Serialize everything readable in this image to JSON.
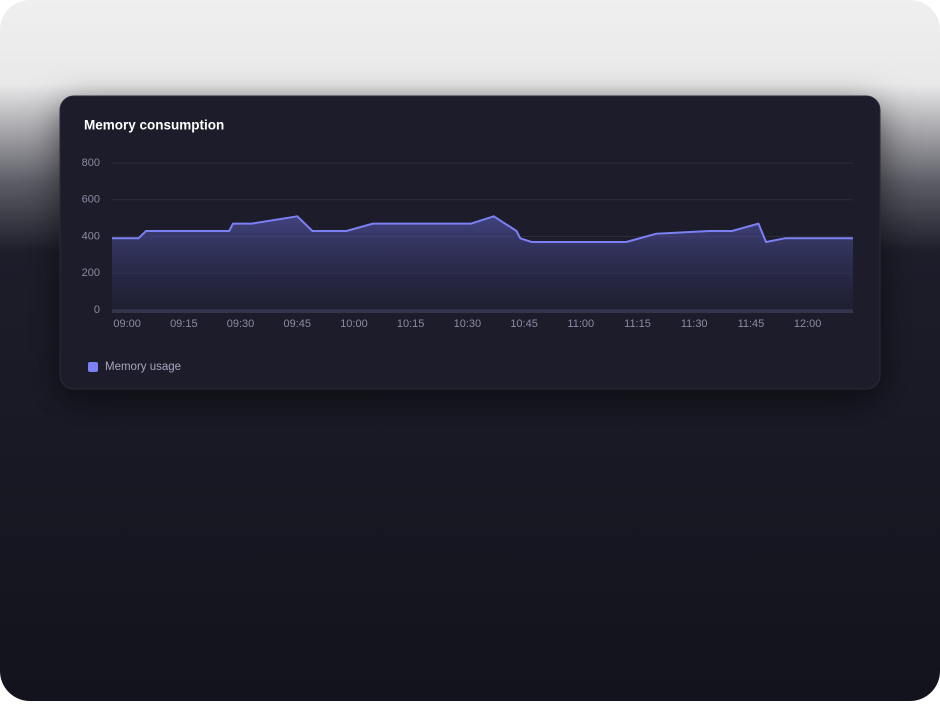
{
  "chart_data": {
    "type": "area",
    "title": "Memory consumption",
    "x": [
      "08:56",
      "09:03",
      "09:05",
      "09:27",
      "09:28",
      "09:33",
      "09:45",
      "09:49",
      "09:58",
      "10:05",
      "10:31",
      "10:37",
      "10:43",
      "10:44",
      "10:47",
      "11:12",
      "11:20",
      "11:34",
      "11:40",
      "11:47",
      "11:49",
      "11:54",
      "12:12"
    ],
    "series": [
      {
        "name": "Memory usage",
        "color": "#7b80f2",
        "values": [
          390,
          390,
          430,
          430,
          470,
          470,
          510,
          430,
          430,
          470,
          470,
          510,
          430,
          390,
          370,
          370,
          415,
          430,
          430,
          470,
          370,
          390,
          390
        ]
      }
    ],
    "xlim": [
      "08:56",
      "12:12"
    ],
    "xticks": [
      "09:00",
      "09:15",
      "09:30",
      "09:45",
      "10:00",
      "10:15",
      "10:30",
      "10:45",
      "11:00",
      "11:15",
      "11:30",
      "11:45",
      "12:00"
    ],
    "ylim": [
      0,
      800
    ],
    "yticks": [
      0,
      200,
      400,
      600,
      800
    ],
    "grid": true,
    "legend": "bottom-left"
  }
}
